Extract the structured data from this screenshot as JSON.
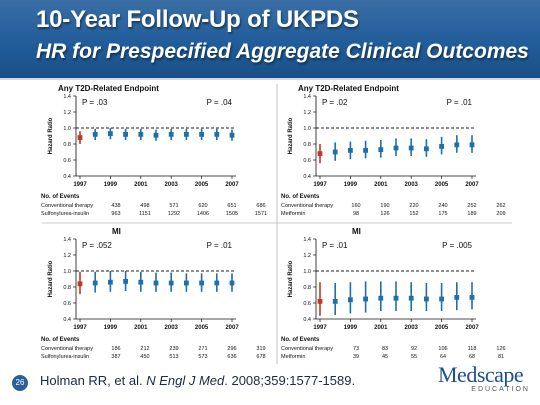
{
  "slide": {
    "title": "10-Year Follow-Up of UKPDS",
    "subtitle": "HR for Prespecified Aggregate Clinical Outcomes",
    "slide_number": "26",
    "citation_prefix": "Holman RR, et al. ",
    "citation_journal": "N Engl J Med",
    "citation_suffix": ". 2008;359:1577-1589.",
    "logo_text": "Medscape",
    "logo_sub": "EDUCATION"
  },
  "colors": {
    "header": "#215d9a",
    "conventional_marker": "#c0392b",
    "treatment_marker": "#1f6fa8",
    "reference_line": "#222222"
  },
  "chart_data": [
    {
      "type": "scatter",
      "panel_title": "Any T2D-Related Endpoint",
      "ylabel": "Hazard Ratio",
      "ylim": [
        0.4,
        1.4
      ],
      "yticks": [
        "0.4",
        "0.6",
        "0.8",
        "1.0",
        "1.2",
        "1.4"
      ],
      "xticks": [
        "1997",
        "1999",
        "2001",
        "2003",
        "2005",
        "2007"
      ],
      "p_left": "P = .03",
      "p_right": "P = .04",
      "series": [
        {
          "points": [
            {
              "year": 1997,
              "hr": 0.88,
              "low": 0.8,
              "high": 0.96
            },
            {
              "year": 1998,
              "hr": 0.92,
              "low": 0.85,
              "high": 0.99
            },
            {
              "year": 1999,
              "hr": 0.93,
              "low": 0.86,
              "high": 1.0
            },
            {
              "year": 2000,
              "hr": 0.92,
              "low": 0.85,
              "high": 0.99
            },
            {
              "year": 2001,
              "hr": 0.92,
              "low": 0.85,
              "high": 0.99
            },
            {
              "year": 2002,
              "hr": 0.91,
              "low": 0.84,
              "high": 0.98
            },
            {
              "year": 2003,
              "hr": 0.92,
              "low": 0.85,
              "high": 0.99
            },
            {
              "year": 2004,
              "hr": 0.92,
              "low": 0.85,
              "high": 0.99
            },
            {
              "year": 2005,
              "hr": 0.92,
              "low": 0.85,
              "high": 0.99
            },
            {
              "year": 2006,
              "hr": 0.92,
              "low": 0.85,
              "high": 0.99
            },
            {
              "year": 2007,
              "hr": 0.91,
              "low": 0.84,
              "high": 0.98
            }
          ]
        }
      ],
      "events_title": "No. of Events",
      "events_rows": [
        {
          "label": "Conventional therapy",
          "values": [
            "438",
            "498",
            "571",
            "620",
            "651",
            "686"
          ]
        },
        {
          "label": "Sulfonylurea-insulin",
          "values": [
            "963",
            "1151",
            "1292",
            "1406",
            "1505",
            "1571"
          ]
        }
      ]
    },
    {
      "type": "scatter",
      "panel_title": "Any T2D-Related Endpoint",
      "ylabel": "Hazard Ratio",
      "ylim": [
        0.4,
        1.4
      ],
      "yticks": [
        "0.4",
        "0.6",
        "0.8",
        "1.0",
        "1.2",
        "1.4"
      ],
      "xticks": [
        "1997",
        "1999",
        "2001",
        "2003",
        "2005",
        "2007"
      ],
      "p_left": "P = .02",
      "p_right": "P = .01",
      "series": [
        {
          "points": [
            {
              "year": 1997,
              "hr": 0.68,
              "low": 0.56,
              "high": 0.8
            },
            {
              "year": 1998,
              "hr": 0.7,
              "low": 0.59,
              "high": 0.82
            },
            {
              "year": 1999,
              "hr": 0.72,
              "low": 0.61,
              "high": 0.83
            },
            {
              "year": 2000,
              "hr": 0.72,
              "low": 0.62,
              "high": 0.84
            },
            {
              "year": 2001,
              "hr": 0.73,
              "low": 0.63,
              "high": 0.85
            },
            {
              "year": 2002,
              "hr": 0.75,
              "low": 0.65,
              "high": 0.87
            },
            {
              "year": 2003,
              "hr": 0.75,
              "low": 0.65,
              "high": 0.87
            },
            {
              "year": 2004,
              "hr": 0.74,
              "low": 0.64,
              "high": 0.86
            },
            {
              "year": 2005,
              "hr": 0.77,
              "low": 0.67,
              "high": 0.89
            },
            {
              "year": 2006,
              "hr": 0.79,
              "low": 0.69,
              "high": 0.91
            },
            {
              "year": 2007,
              "hr": 0.79,
              "low": 0.69,
              "high": 0.91
            }
          ]
        }
      ],
      "events_title": "No. of Events",
      "events_rows": [
        {
          "label": "Conventional therapy",
          "values": [
            "160",
            "190",
            "220",
            "240",
            "252",
            "262"
          ]
        },
        {
          "label": "Metformin",
          "values": [
            "98",
            "126",
            "152",
            "175",
            "189",
            "209"
          ]
        }
      ]
    },
    {
      "type": "scatter",
      "panel_title": "MI",
      "ylabel": "Hazard Ratio",
      "ylim": [
        0.4,
        1.4
      ],
      "yticks": [
        "0.4",
        "0.6",
        "0.8",
        "1.0",
        "1.2",
        "1.4"
      ],
      "xticks": [
        "1997",
        "1999",
        "2001",
        "2003",
        "2005",
        "2007"
      ],
      "p_left": "P = .052",
      "p_right": "P = .01",
      "series": [
        {
          "points": [
            {
              "year": 1997,
              "hr": 0.84,
              "low": 0.71,
              "high": 0.99
            },
            {
              "year": 1998,
              "hr": 0.85,
              "low": 0.73,
              "high": 0.99
            },
            {
              "year": 1999,
              "hr": 0.86,
              "low": 0.74,
              "high": 1.0
            },
            {
              "year": 2000,
              "hr": 0.87,
              "low": 0.75,
              "high": 1.0
            },
            {
              "year": 2001,
              "hr": 0.86,
              "low": 0.74,
              "high": 0.99
            },
            {
              "year": 2002,
              "hr": 0.85,
              "low": 0.74,
              "high": 0.98
            },
            {
              "year": 2003,
              "hr": 0.85,
              "low": 0.74,
              "high": 0.98
            },
            {
              "year": 2004,
              "hr": 0.85,
              "low": 0.74,
              "high": 0.97
            },
            {
              "year": 2005,
              "hr": 0.85,
              "low": 0.74,
              "high": 0.97
            },
            {
              "year": 2006,
              "hr": 0.85,
              "low": 0.74,
              "high": 0.97
            },
            {
              "year": 2007,
              "hr": 0.85,
              "low": 0.74,
              "high": 0.97
            }
          ]
        }
      ],
      "events_title": "No. of Events",
      "events_rows": [
        {
          "label": "Conventional therapy",
          "values": [
            "186",
            "212",
            "239",
            "271",
            "296",
            "319"
          ]
        },
        {
          "label": "Sulfonylurea-insulin",
          "values": [
            "387",
            "450",
            "513",
            "573",
            "636",
            "678"
          ]
        }
      ]
    },
    {
      "type": "scatter",
      "panel_title": "MI",
      "ylabel": "Hazard Ratio",
      "ylim": [
        0.4,
        1.4
      ],
      "yticks": [
        "0.4",
        "0.6",
        "0.8",
        "1.0",
        "1.2",
        "1.4"
      ],
      "xticks": [
        "1997",
        "1999",
        "2001",
        "2003",
        "2005",
        "2007"
      ],
      "p_left": "P = .01",
      "p_right": "P = .005",
      "series": [
        {
          "points": [
            {
              "year": 1997,
              "hr": 0.62,
              "low": 0.44,
              "high": 0.86
            },
            {
              "year": 1998,
              "hr": 0.62,
              "low": 0.45,
              "high": 0.85
            },
            {
              "year": 1999,
              "hr": 0.64,
              "low": 0.47,
              "high": 0.86
            },
            {
              "year": 2000,
              "hr": 0.65,
              "low": 0.48,
              "high": 0.87
            },
            {
              "year": 2001,
              "hr": 0.66,
              "low": 0.5,
              "high": 0.87
            },
            {
              "year": 2002,
              "hr": 0.66,
              "low": 0.5,
              "high": 0.87
            },
            {
              "year": 2003,
              "hr": 0.66,
              "low": 0.5,
              "high": 0.86
            },
            {
              "year": 2004,
              "hr": 0.65,
              "low": 0.5,
              "high": 0.85
            },
            {
              "year": 2005,
              "hr": 0.65,
              "low": 0.5,
              "high": 0.85
            },
            {
              "year": 2006,
              "hr": 0.67,
              "low": 0.51,
              "high": 0.86
            },
            {
              "year": 2007,
              "hr": 0.67,
              "low": 0.52,
              "high": 0.86
            }
          ]
        }
      ],
      "events_title": "No. of Events",
      "events_rows": [
        {
          "label": "Conventional therapy",
          "values": [
            "73",
            "83",
            "92",
            "106",
            "118",
            "126"
          ]
        },
        {
          "label": "Metformin",
          "values": [
            "39",
            "45",
            "55",
            "64",
            "68",
            "81"
          ]
        }
      ]
    }
  ]
}
